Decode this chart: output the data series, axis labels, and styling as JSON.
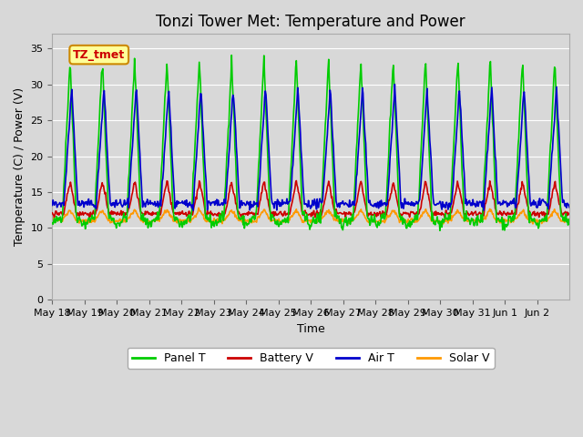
{
  "title": "Tonzi Tower Met: Temperature and Power",
  "xlabel": "Time",
  "ylabel": "Temperature (C) / Power (V)",
  "ylim": [
    0,
    37
  ],
  "yticks": [
    0,
    5,
    10,
    15,
    20,
    25,
    30,
    35
  ],
  "date_labels": [
    "May 18",
    "May 19",
    "May 20",
    "May 21",
    "May 22",
    "May 23",
    "May 24",
    "May 25",
    "May 26",
    "May 27",
    "May 28",
    "May 29",
    "May 30",
    "May 31",
    "Jun 1",
    "Jun 2"
  ],
  "legend_labels": [
    "Panel T",
    "Battery V",
    "Air T",
    "Solar V"
  ],
  "legend_colors": [
    "#00cc00",
    "#cc0000",
    "#0000cc",
    "#ff9900"
  ],
  "line_colors": {
    "panel_t": "#00cc00",
    "battery_v": "#cc0000",
    "air_t": "#0000cc",
    "solar_v": "#ff9900"
  },
  "annotation_text": "TZ_tmet",
  "annotation_bg": "#ffff99",
  "annotation_edge": "#cc8800",
  "annotation_text_color": "#cc0000",
  "plot_bg_color": "#d8d8d8",
  "n_days": 16,
  "title_fontsize": 12
}
